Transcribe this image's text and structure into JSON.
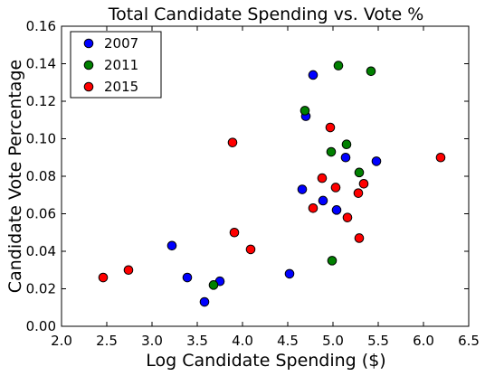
{
  "chart_data": {
    "type": "scatter",
    "title": "Total Candidate Spending vs. Vote %",
    "xlabel": "Log Candidate Spending ($)",
    "ylabel": "Candidate Vote Percentage",
    "xlim": [
      2.0,
      6.5
    ],
    "ylim": [
      0.0,
      0.16
    ],
    "xticks": [
      "2.0",
      "2.5",
      "3.0",
      "3.5",
      "4.0",
      "4.5",
      "5.0",
      "5.5",
      "6.0",
      "6.5"
    ],
    "yticks": [
      "0.00",
      "0.02",
      "0.04",
      "0.06",
      "0.08",
      "0.10",
      "0.12",
      "0.14",
      "0.16"
    ],
    "grid": false,
    "legend_position": "top-left",
    "series": [
      {
        "name": "2007",
        "color": "#0000ff",
        "points": [
          [
            3.22,
            0.043
          ],
          [
            3.39,
            0.026
          ],
          [
            3.58,
            0.013
          ],
          [
            3.75,
            0.024
          ],
          [
            4.52,
            0.028
          ],
          [
            4.66,
            0.073
          ],
          [
            4.7,
            0.112
          ],
          [
            4.78,
            0.134
          ],
          [
            4.89,
            0.067
          ],
          [
            5.04,
            0.062
          ],
          [
            5.14,
            0.09
          ],
          [
            5.48,
            0.088
          ]
        ]
      },
      {
        "name": "2011",
        "color": "#008000",
        "points": [
          [
            3.68,
            0.022
          ],
          [
            4.69,
            0.115
          ],
          [
            4.98,
            0.093
          ],
          [
            4.99,
            0.035
          ],
          [
            5.06,
            0.139
          ],
          [
            5.15,
            0.097
          ],
          [
            5.29,
            0.082
          ],
          [
            5.42,
            0.136
          ]
        ]
      },
      {
        "name": "2015",
        "color": "#ff0000",
        "points": [
          [
            2.46,
            0.026
          ],
          [
            2.74,
            0.03
          ],
          [
            3.89,
            0.098
          ],
          [
            3.91,
            0.05
          ],
          [
            4.09,
            0.041
          ],
          [
            4.78,
            0.063
          ],
          [
            4.88,
            0.079
          ],
          [
            4.97,
            0.106
          ],
          [
            5.03,
            0.074
          ],
          [
            5.16,
            0.058
          ],
          [
            5.28,
            0.071
          ],
          [
            5.29,
            0.047
          ],
          [
            5.34,
            0.076
          ],
          [
            6.19,
            0.09
          ]
        ]
      }
    ]
  }
}
